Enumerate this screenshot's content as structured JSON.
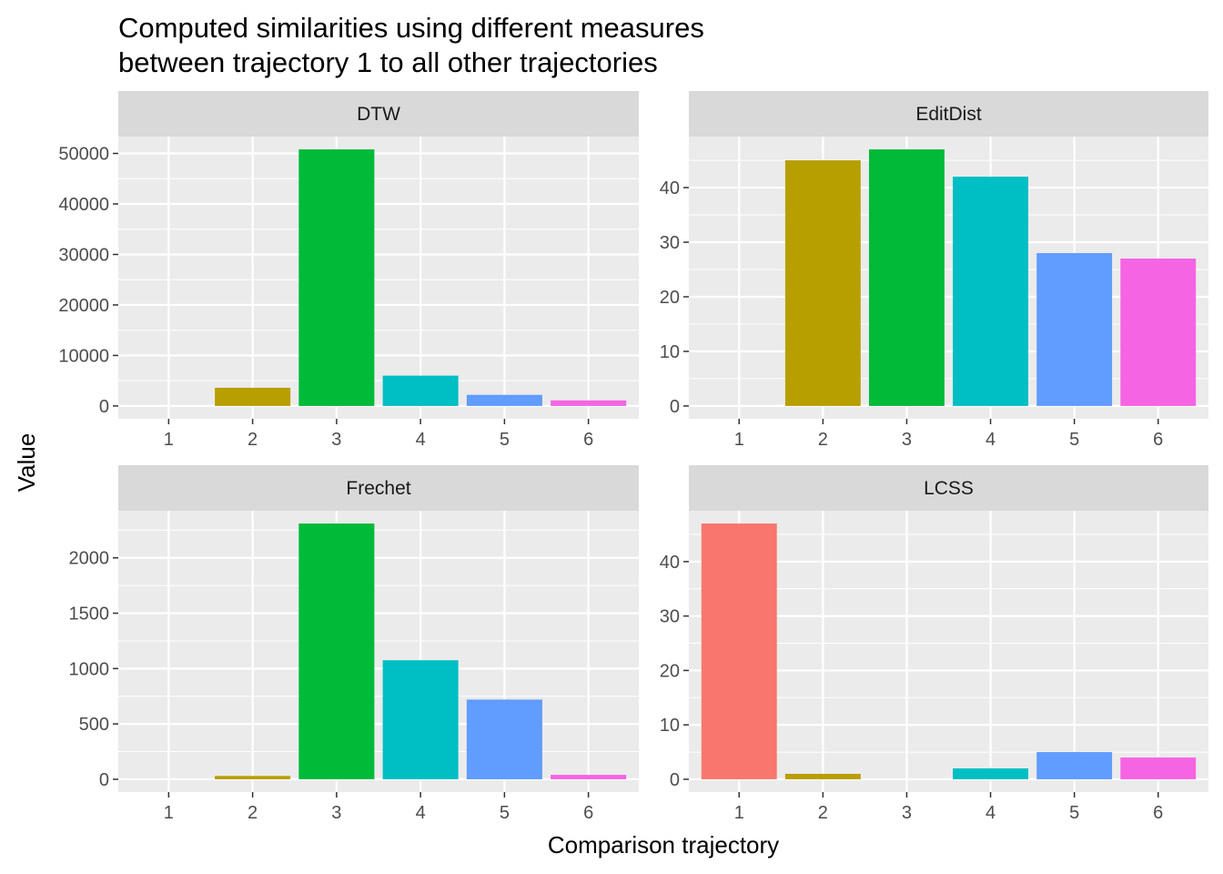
{
  "title_line1": "Computed similarities using different measures",
  "title_line2": "between trajectory 1 to all other trajectories",
  "colors": [
    "#F8766D",
    "#B79F00",
    "#00BA38",
    "#00BFC4",
    "#619CFF",
    "#F564E3"
  ],
  "chart_data": {
    "type": "bar",
    "xlabel": "Comparison trajectory",
    "ylabel": "Value",
    "categories": [
      "1",
      "2",
      "3",
      "4",
      "5",
      "6"
    ],
    "grid": true,
    "legend": "none",
    "facets": [
      {
        "name": "DTW",
        "values": [
          0,
          3600,
          50800,
          6000,
          2200,
          1100
        ],
        "ylim": [
          -2540,
          53340
        ],
        "yticks": [
          0,
          10000,
          20000,
          30000,
          40000,
          50000
        ],
        "ytick_labels": [
          "0",
          "10000",
          "20000",
          "30000",
          "40000",
          "50000"
        ]
      },
      {
        "name": "EditDist",
        "values": [
          0,
          45,
          47,
          42,
          28,
          27
        ],
        "ylim": [
          -2.35,
          49.35
        ],
        "yticks": [
          0,
          10,
          20,
          30,
          40
        ],
        "ytick_labels": [
          "0",
          "10",
          "20",
          "30",
          "40"
        ]
      },
      {
        "name": "Frechet",
        "values": [
          0,
          30,
          2310,
          1075,
          720,
          40
        ],
        "ylim": [
          -115.5,
          2425.5
        ],
        "yticks": [
          0,
          500,
          1000,
          1500,
          2000
        ],
        "ytick_labels": [
          "0",
          "500",
          "1000",
          "1500",
          "2000"
        ]
      },
      {
        "name": "LCSS",
        "values": [
          47,
          1,
          0,
          2,
          5,
          4
        ],
        "ylim": [
          -2.35,
          49.35
        ],
        "yticks": [
          0,
          10,
          20,
          30,
          40
        ],
        "ytick_labels": [
          "0",
          "10",
          "20",
          "30",
          "40"
        ]
      }
    ]
  }
}
